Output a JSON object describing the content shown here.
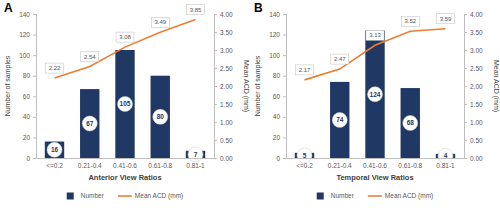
{
  "chart_data": [
    {
      "type": "bar",
      "title": "A",
      "categories": [
        "<=0.2",
        "0.21-0.4",
        "0.41-0.6",
        "0.61-0.8",
        "0.81-1"
      ],
      "x_label": "Anterior View Ratios",
      "y_label": "Number of samples",
      "y2_label": "Mean ACD (mm)",
      "series": [
        {
          "name": "Number",
          "type": "bar",
          "color": "#203864",
          "values": [
            16,
            67,
            105,
            80,
            7
          ]
        },
        {
          "name": "Mean ACD (mm)",
          "type": "line",
          "color": "#ed7d31",
          "axis": "y2",
          "values": [
            2.22,
            2.54,
            3.08,
            3.49,
            3.85
          ]
        }
      ],
      "ylim": [
        0,
        140
      ],
      "yticks": [
        0,
        20,
        40,
        60,
        80,
        100,
        120,
        140
      ],
      "y2lim": [
        0,
        4
      ],
      "y2ticks": [
        {
          "value": 0,
          "label": "0.00"
        },
        {
          "value": 0.5,
          "label": "0.50"
        },
        {
          "value": 1,
          "label": "1.00"
        },
        {
          "value": 1.5,
          "label": "1.50"
        },
        {
          "value": 2,
          "label": "2.00"
        },
        {
          "value": 2.5,
          "label": "2.50"
        },
        {
          "value": 3,
          "label": "3.00"
        },
        {
          "value": 3.5,
          "label": "3.50"
        },
        {
          "value": 4,
          "label": "4.00"
        }
      ],
      "grid": false,
      "data_labels": true,
      "legend": "bottom"
    },
    {
      "type": "bar",
      "title": "B",
      "categories": [
        "<=0.2",
        "0.21-0.4",
        "0.41-0.6",
        "0.61-0.8",
        "0.81-1"
      ],
      "x_label": "Temporal View Ratios",
      "y_label": "Number of samples",
      "y2_label": "Mean ACD (mm)",
      "series": [
        {
          "name": "Number",
          "type": "bar",
          "color": "#203864",
          "values": [
            5,
            74,
            124,
            68,
            4
          ]
        },
        {
          "name": "Mean ACD (mm)",
          "type": "line",
          "color": "#ed7d31",
          "axis": "y2",
          "values": [
            2.17,
            2.47,
            3.13,
            3.52,
            3.59
          ]
        }
      ],
      "ylim": [
        0,
        140
      ],
      "yticks": [
        0,
        20,
        40,
        60,
        80,
        100,
        120,
        140
      ],
      "y2lim": [
        0,
        4
      ],
      "y2ticks": [
        {
          "value": 0,
          "label": "0.00"
        },
        {
          "value": 0.5,
          "label": "0.50"
        },
        {
          "value": 1,
          "label": "1.00"
        },
        {
          "value": 1.5,
          "label": "1.50"
        },
        {
          "value": 2,
          "label": "2.00"
        },
        {
          "value": 2.5,
          "label": "2.50"
        },
        {
          "value": 3,
          "label": "3.00"
        },
        {
          "value": 3.5,
          "label": "3.50"
        },
        {
          "value": 4,
          "label": "4.00"
        }
      ],
      "grid": false,
      "data_labels": true,
      "legend": "bottom"
    }
  ]
}
